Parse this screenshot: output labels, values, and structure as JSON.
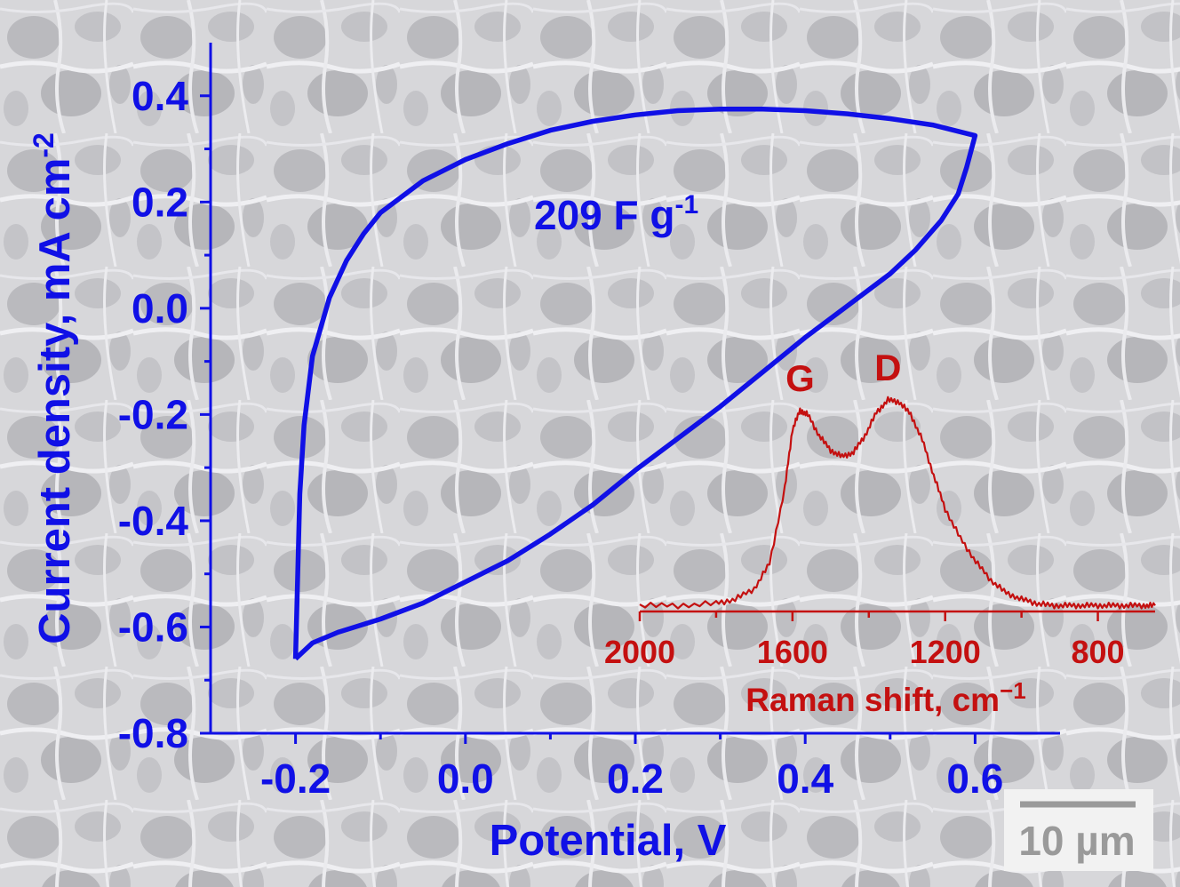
{
  "colors": {
    "cv_color": "#1010e6",
    "raman_color": "#c41010",
    "background_gray": "#cfcfd3",
    "scalebar_box": "#f2f2f2",
    "scalebar_text": "#9a9a9a"
  },
  "chart_data": [
    {
      "type": "line",
      "title": "",
      "xlabel": "Potential, V",
      "ylabel": "Current density, mA cm",
      "ylabel_sup": "-2",
      "xlim": [
        -0.3,
        0.7
      ],
      "ylim": [
        -0.8,
        0.5
      ],
      "xticks": [
        -0.2,
        0.0,
        0.2,
        0.4,
        0.6
      ],
      "xtick_labels": [
        "-0.2",
        "0.0",
        "0.2",
        "0.4",
        "0.6"
      ],
      "yticks": [
        0.4,
        0.2,
        0.0,
        -0.2,
        -0.4,
        -0.6,
        -0.8
      ],
      "ytick_labels": [
        "0.4",
        "0.2",
        "0.0",
        "-0.2",
        "-0.4",
        "-0.6",
        "-0.8"
      ],
      "grid": false,
      "annotation": {
        "text": "209 F g",
        "sup": "-1"
      },
      "series": [
        {
          "x": [
            -0.2,
            -0.195,
            -0.19,
            -0.18,
            -0.16,
            -0.14,
            -0.12,
            -0.1,
            -0.05,
            0.0,
            0.05,
            0.1,
            0.15,
            0.2,
            0.25,
            0.3,
            0.35,
            0.4,
            0.45,
            0.5,
            0.55,
            0.6,
            0.59,
            0.58,
            0.56,
            0.53,
            0.5,
            0.45,
            0.4,
            0.35,
            0.3,
            0.25,
            0.2,
            0.15,
            0.1,
            0.05,
            0.0,
            -0.05,
            -0.1,
            -0.15,
            -0.18,
            -0.2
          ],
          "y": [
            -0.66,
            -0.35,
            -0.22,
            -0.09,
            0.02,
            0.09,
            0.14,
            0.18,
            0.24,
            0.28,
            0.31,
            0.335,
            0.352,
            0.364,
            0.372,
            0.375,
            0.375,
            0.372,
            0.366,
            0.357,
            0.345,
            0.325,
            0.265,
            0.215,
            0.165,
            0.11,
            0.065,
            0.005,
            -0.055,
            -0.12,
            -0.185,
            -0.245,
            -0.305,
            -0.37,
            -0.425,
            -0.475,
            -0.515,
            -0.555,
            -0.585,
            -0.61,
            -0.63,
            -0.66
          ]
        }
      ]
    },
    {
      "type": "line",
      "title": "",
      "xlabel": "Raman shift, cm",
      "xlabel_sup": "−1",
      "xlim": [
        2000,
        650
      ],
      "xticks": [
        2000,
        1600,
        1200,
        800
      ],
      "xtick_labels": [
        "2000",
        "1600",
        "1200",
        "800"
      ],
      "reversed_x": true,
      "grid": false,
      "annotations": [
        {
          "text": "G",
          "x": 1580
        },
        {
          "text": "D",
          "x": 1350
        }
      ],
      "series": [
        {
          "x": [
            2000,
            1900,
            1800,
            1750,
            1700,
            1660,
            1620,
            1600,
            1580,
            1560,
            1530,
            1500,
            1470,
            1440,
            1410,
            1380,
            1350,
            1320,
            1290,
            1260,
            1230,
            1200,
            1160,
            1120,
            1080,
            1040,
            1000,
            960,
            920,
            880,
            840,
            800,
            760,
            720,
            680,
            650
          ],
          "y": [
            0.02,
            0.02,
            0.03,
            0.05,
            0.1,
            0.22,
            0.58,
            0.86,
            0.95,
            0.93,
            0.83,
            0.76,
            0.73,
            0.75,
            0.83,
            0.94,
            1.0,
            0.99,
            0.93,
            0.81,
            0.64,
            0.48,
            0.34,
            0.23,
            0.14,
            0.08,
            0.05,
            0.03,
            0.02,
            0.02,
            0.02,
            0.02,
            0.02,
            0.02,
            0.02,
            0.02
          ]
        }
      ]
    }
  ],
  "scalebar": {
    "label": "10 µm"
  }
}
